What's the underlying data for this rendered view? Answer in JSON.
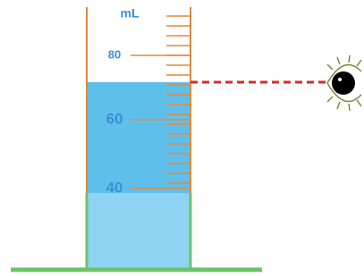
{
  "cylinder": {
    "unit": "mL",
    "scale_labels": [
      "80",
      "60",
      "40"
    ]
  }
}
